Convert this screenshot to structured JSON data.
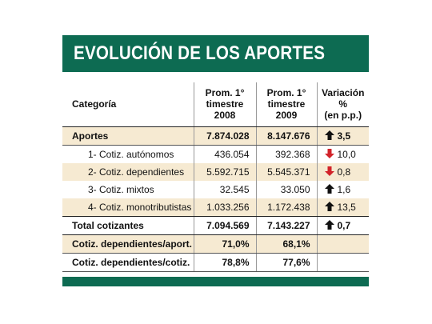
{
  "title": "EVOLUCIÓN DE LOS APORTES",
  "headers": {
    "categoria": "Categoría",
    "prom2008": [
      "Prom. 1°",
      "timestre",
      "2008"
    ],
    "prom2009": [
      "Prom. 1°",
      "timestre",
      "2009"
    ],
    "variacion": [
      "Variación %",
      "(en p.p.)"
    ]
  },
  "rows": [
    {
      "label": "Aportes",
      "v2008": "7.874.028",
      "v2009": "8.147.676",
      "var": "3,5",
      "dir": "up"
    },
    {
      "label": "1- Cotiz. autónomos",
      "v2008": "436.054",
      "v2009": "392.368",
      "var": "10,0",
      "dir": "down"
    },
    {
      "label": "2- Cotiz. dependientes",
      "v2008": "5.592.715",
      "v2009": "5.545.371",
      "var": "0,8",
      "dir": "down"
    },
    {
      "label": "3- Cotiz. mixtos",
      "v2008": "32.545",
      "v2009": "33.050",
      "var": "1,6",
      "dir": "up"
    },
    {
      "label": "4- Cotiz. monotributistas",
      "v2008": "1.033.256",
      "v2009": "1.172.438",
      "var": "13,5",
      "dir": "up"
    },
    {
      "label": "Total cotizantes",
      "v2008": "7.094.569",
      "v2009": "7.143.227",
      "var": "0,7",
      "dir": "up"
    },
    {
      "label": "Cotiz. dependientes/aport.",
      "v2008": "71,0%",
      "v2009": "68,1%",
      "var": "",
      "dir": ""
    },
    {
      "label": "Cotiz. dependientes/cotiz.",
      "v2008": "78,8%",
      "v2009": "77,6%",
      "var": "",
      "dir": ""
    }
  ],
  "colors": {
    "banner": "#0d6b52",
    "row_shade": "#f6ead2",
    "arrow_up": "#111111",
    "arrow_down": "#d2232a"
  }
}
